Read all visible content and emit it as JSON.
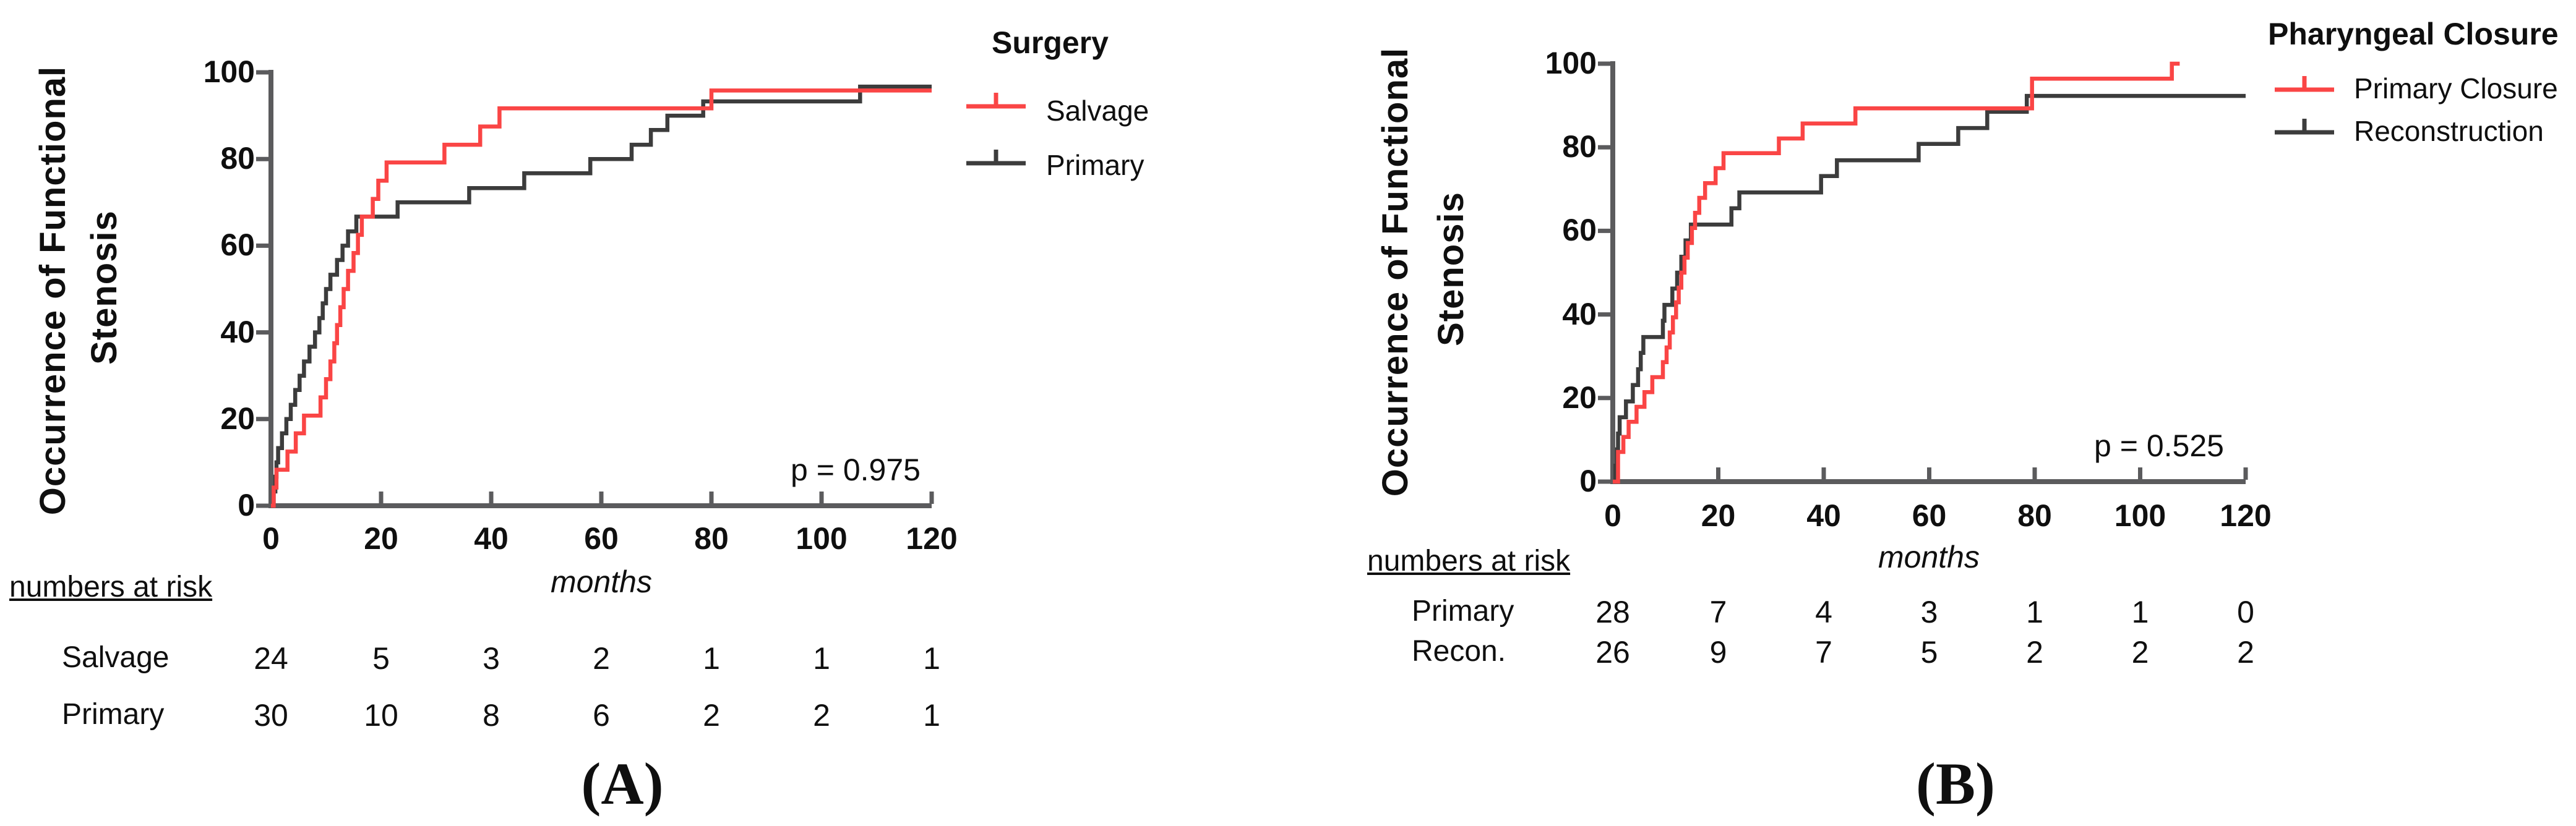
{
  "figure": {
    "background": "#ffffff",
    "axis_color": "#5b5b5d"
  },
  "chart_data": [
    {
      "type": "line",
      "subtype": "kaplan-meier-step",
      "panel_caption": "(A)",
      "ylabel_line1": "Occurrence of Functional",
      "ylabel_line2": "Stenosis",
      "xlabel": "months",
      "xlim": [
        0,
        120
      ],
      "ylim": [
        0,
        100
      ],
      "x_ticks": [
        "0",
        "20",
        "40",
        "60",
        "80",
        "100",
        "120"
      ],
      "y_ticks": [
        "0",
        "20",
        "40",
        "60",
        "80",
        "100"
      ],
      "grid": false,
      "legend_position": "right-top",
      "p_value_text": "p = 0.975",
      "legend": {
        "title": "Surgery"
      },
      "series": [
        {
          "name": "Primary",
          "color": "#3c3c3c",
          "points": [
            [
              0,
              0
            ],
            [
              0.5,
              3.3
            ],
            [
              0.8,
              6.7
            ],
            [
              1,
              10
            ],
            [
              1.3,
              13.3
            ],
            [
              2,
              16.7
            ],
            [
              2.8,
              20
            ],
            [
              3.6,
              23.3
            ],
            [
              4.4,
              26.7
            ],
            [
              5.2,
              30
            ],
            [
              6,
              33.3
            ],
            [
              7,
              36.7
            ],
            [
              8,
              40
            ],
            [
              8.8,
              43.3
            ],
            [
              9.4,
              46.7
            ],
            [
              10,
              50
            ],
            [
              10.8,
              53.3
            ],
            [
              12,
              56.7
            ],
            [
              13,
              60
            ],
            [
              14,
              63.3
            ],
            [
              15.5,
              66.7
            ],
            [
              23,
              70
            ],
            [
              36,
              73.3
            ],
            [
              46,
              76.7
            ],
            [
              58,
              80
            ],
            [
              65.5,
              83.3
            ],
            [
              69,
              86.7
            ],
            [
              72,
              90
            ],
            [
              78.5,
              93.3
            ],
            [
              107,
              96.7
            ],
            [
              120,
              96.7
            ]
          ]
        },
        {
          "name": "Salvage",
          "color": "#fa4545",
          "points": [
            [
              0,
              0
            ],
            [
              0.5,
              4.2
            ],
            [
              1,
              8.3
            ],
            [
              3,
              12.5
            ],
            [
              4.5,
              16.7
            ],
            [
              6,
              20.8
            ],
            [
              9,
              25
            ],
            [
              10,
              29.2
            ],
            [
              10.8,
              33.3
            ],
            [
              11.5,
              37.5
            ],
            [
              12,
              41.7
            ],
            [
              12.6,
              45.8
            ],
            [
              13.2,
              50
            ],
            [
              14,
              54.2
            ],
            [
              15,
              58.3
            ],
            [
              15.8,
              62.5
            ],
            [
              16.5,
              66.7
            ],
            [
              18.5,
              70.8
            ],
            [
              19.5,
              75
            ],
            [
              21,
              79.2
            ],
            [
              31.5,
              83.3
            ],
            [
              38,
              87.5
            ],
            [
              41.5,
              91.7
            ],
            [
              80,
              95.8
            ],
            [
              120,
              95.8
            ]
          ]
        }
      ],
      "legend_order": [
        "Salvage",
        "Primary"
      ],
      "numbers_at_risk": {
        "header": "numbers at risk",
        "time_points": [
          0,
          20,
          40,
          60,
          80,
          100,
          120
        ],
        "rows": [
          {
            "name": "Salvage",
            "values": [
              "24",
              "5",
              "3",
              "2",
              "1",
              "1",
              "1"
            ]
          },
          {
            "name": "Primary",
            "values": [
              "30",
              "10",
              "8",
              "6",
              "2",
              "2",
              "1"
            ]
          }
        ]
      }
    },
    {
      "type": "line",
      "subtype": "kaplan-meier-step",
      "panel_caption": "(B)",
      "ylabel_line1": "Occurrence of Functional",
      "ylabel_line2": "Stenosis",
      "xlabel": "months",
      "xlim": [
        0,
        120
      ],
      "ylim": [
        0,
        100
      ],
      "x_ticks": [
        "0",
        "20",
        "40",
        "60",
        "80",
        "100",
        "120"
      ],
      "y_ticks": [
        "0",
        "20",
        "40",
        "60",
        "80",
        "100"
      ],
      "grid": false,
      "legend_position": "right-top",
      "p_value_text": "p = 0.525",
      "legend": {
        "title": "Pharyngeal Closure"
      },
      "series": [
        {
          "name": "Reconstruction",
          "color": "#3c3c3c",
          "points": [
            [
              0,
              0
            ],
            [
              0.5,
              3.8
            ],
            [
              0.8,
              7.7
            ],
            [
              1,
              11.5
            ],
            [
              1.3,
              15.4
            ],
            [
              2.5,
              19.2
            ],
            [
              3.8,
              23.1
            ],
            [
              4.8,
              26.9
            ],
            [
              5.3,
              30.8
            ],
            [
              5.8,
              34.6
            ],
            [
              9.5,
              38.5
            ],
            [
              9.8,
              42.3
            ],
            [
              11.3,
              46.2
            ],
            [
              12.2,
              50
            ],
            [
              13,
              53.8
            ],
            [
              13.8,
              57.7
            ],
            [
              14.8,
              61.5
            ],
            [
              22.5,
              65.4
            ],
            [
              24,
              69.2
            ],
            [
              39.5,
              73.1
            ],
            [
              42.5,
              76.9
            ],
            [
              58,
              80.8
            ],
            [
              65.5,
              84.6
            ],
            [
              71,
              88.5
            ],
            [
              78.5,
              92.3
            ],
            [
              120,
              92.3
            ]
          ]
        },
        {
          "name": "Primary Closure",
          "color": "#fa4545",
          "points": [
            [
              0,
              0
            ],
            [
              1,
              7.1
            ],
            [
              2,
              10.7
            ],
            [
              3,
              14.3
            ],
            [
              4.5,
              17.9
            ],
            [
              6,
              21.4
            ],
            [
              7.5,
              25
            ],
            [
              9.5,
              28.6
            ],
            [
              10.2,
              32.1
            ],
            [
              10.8,
              35.7
            ],
            [
              11.4,
              39.3
            ],
            [
              12,
              42.9
            ],
            [
              12.5,
              46.4
            ],
            [
              13,
              50
            ],
            [
              13.6,
              53.6
            ],
            [
              14.2,
              57.1
            ],
            [
              15,
              60.7
            ],
            [
              15.6,
              64.3
            ],
            [
              16.4,
              67.9
            ],
            [
              17.5,
              71.4
            ],
            [
              19.5,
              75
            ],
            [
              21,
              78.6
            ],
            [
              31.5,
              82.1
            ],
            [
              36,
              85.7
            ],
            [
              46,
              89.3
            ],
            [
              79.5,
              96.4
            ],
            [
              106,
              100
            ],
            [
              107.5,
              100
            ]
          ]
        }
      ],
      "legend_order": [
        "Primary Closure",
        "Reconstruction"
      ],
      "numbers_at_risk": {
        "header": "numbers at risk",
        "time_points": [
          0,
          20,
          40,
          60,
          80,
          100,
          120
        ],
        "rows": [
          {
            "name": "Primary",
            "values": [
              "28",
              "7",
              "4",
              "3",
              "1",
              "1",
              "0"
            ]
          },
          {
            "name": "Recon.",
            "values": [
              "26",
              "9",
              "7",
              "5",
              "2",
              "2",
              "2"
            ]
          }
        ]
      }
    }
  ]
}
